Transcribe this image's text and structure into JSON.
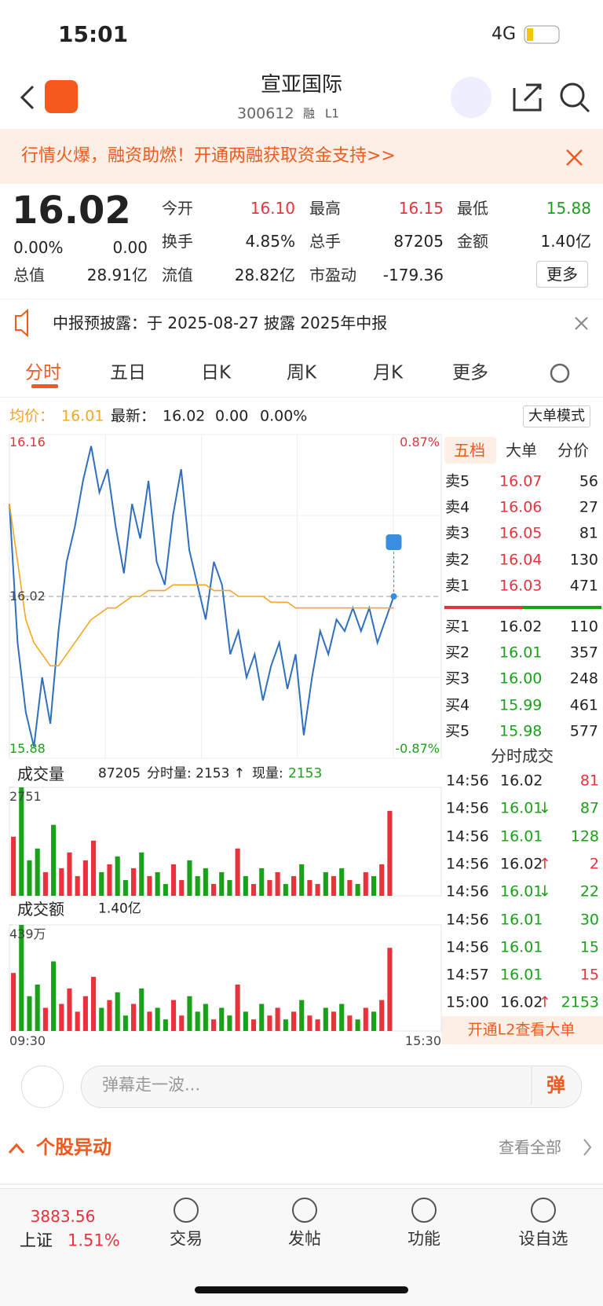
{
  "status": {
    "time": "15:01",
    "network": "4G"
  },
  "header": {
    "title": "宣亚国际",
    "code": "300612",
    "tags": [
      "融",
      "L1"
    ]
  },
  "banner": "行情火爆，融资助燃！开通两融获取资金支持>>",
  "quote": {
    "price": "16.02",
    "change_pct": "0.00%",
    "change": "0.00",
    "more": "更多",
    "stats": [
      {
        "label": "今开",
        "value": "16.10"
      },
      {
        "label": "最高",
        "value": "16.15"
      },
      {
        "label": "最低",
        "value": "15.88"
      },
      {
        "label": "换手",
        "value": "4.85%"
      },
      {
        "label": "总手",
        "value": "87205"
      },
      {
        "label": "金额",
        "value": "1.40亿"
      },
      {
        "label": "总值",
        "value": "28.91亿"
      },
      {
        "label": "流值",
        "value": "28.82亿"
      },
      {
        "label": "市盈动",
        "value": "-179.36"
      }
    ]
  },
  "notice": "中报预披露：于 2025-08-27 披露 2025年中报",
  "tabs": [
    "分时",
    "五日",
    "日K",
    "周K",
    "月K",
    "更多"
  ],
  "info": {
    "avg_label": "均价：",
    "avg": "16.01",
    "last_label": "最新：",
    "last": "16.02",
    "change": "0.00",
    "change_pct": "0.00%",
    "mode": "大单模式"
  },
  "chart_data": [
    {
      "type": "line",
      "ylim": [
        15.88,
        16.16
      ],
      "yticks": [
        15.88,
        16.02,
        16.16
      ],
      "minor_yticks": [
        15.95,
        16.09
      ],
      "y2lim": [
        -0.87,
        0.87
      ],
      "y2ticks": [
        {
          "value": -0.87,
          "label": "-0.87%"
        },
        {
          "value": 0.87,
          "label": "0.87%"
        }
      ],
      "time_labels": [
        "09:30",
        "15:30"
      ],
      "series": [
        {
          "name": "最新",
          "color": "#2f6fbf",
          "values": [
            16.1,
            15.98,
            15.92,
            15.89,
            15.95,
            15.91,
            15.99,
            16.05,
            16.08,
            16.12,
            16.15,
            16.11,
            16.13,
            16.08,
            16.04,
            16.1,
            16.07,
            16.12,
            16.05,
            16.03,
            16.09,
            16.13,
            16.06,
            16.03,
            16.0,
            16.05,
            16.03,
            15.97,
            15.99,
            15.95,
            15.97,
            15.93,
            15.96,
            15.98,
            15.94,
            15.97,
            15.9,
            15.95,
            15.99,
            15.97,
            16.0,
            15.99,
            16.01,
            15.99,
            16.01,
            15.98,
            16.0,
            16.02
          ]
        },
        {
          "name": "均价",
          "color": "#f5a623",
          "values": [
            16.1,
            16.05,
            16.0,
            15.98,
            15.97,
            15.96,
            15.96,
            15.97,
            15.98,
            15.99,
            16.0,
            16.005,
            16.01,
            16.01,
            16.015,
            16.02,
            16.02,
            16.025,
            16.025,
            16.025,
            16.03,
            16.03,
            16.03,
            16.03,
            16.03,
            16.025,
            16.025,
            16.025,
            16.02,
            16.02,
            16.02,
            16.02,
            16.015,
            16.015,
            16.015,
            16.01,
            16.01,
            16.01,
            16.01,
            16.01,
            16.01,
            16.01,
            16.01,
            16.01,
            16.01,
            16.01,
            16.01,
            16.01
          ]
        }
      ]
    },
    {
      "type": "bar",
      "title": "成交量",
      "total": "87205",
      "detail": "分时量: 2153 ↑",
      "now_label": "现量:",
      "now": "2153",
      "ylim": [
        0,
        2751
      ],
      "yticks": [
        2751
      ],
      "up_color": "#e8323c",
      "down_color": "#1aa11a",
      "values": [
        1500,
        2751,
        900,
        1200,
        600,
        1800,
        700,
        1100,
        500,
        900,
        1400,
        600,
        800,
        1000,
        400,
        700,
        1100,
        500,
        600,
        300,
        800,
        400,
        900,
        500,
        700,
        300,
        600,
        400,
        1200,
        500,
        300,
        700,
        400,
        600,
        300,
        500,
        800,
        400,
        300,
        600,
        500,
        700,
        400,
        300,
        600,
        500,
        800,
        2153
      ]
    },
    {
      "type": "bar",
      "title": "成交额",
      "total": "1.40亿",
      "ylim": [
        0,
        439
      ],
      "yticks": [
        {
          "value": 439,
          "label": "439万"
        }
      ],
      "up_color": "#e8323c",
      "down_color": "#1aa11a",
      "values": [
        240,
        439,
        144,
        192,
        96,
        288,
        112,
        176,
        80,
        144,
        224,
        96,
        128,
        160,
        64,
        112,
        176,
        80,
        96,
        48,
        128,
        64,
        144,
        80,
        112,
        48,
        96,
        64,
        192,
        80,
        48,
        112,
        64,
        96,
        48,
        80,
        128,
        64,
        48,
        96,
        80,
        112,
        64,
        48,
        96,
        80,
        128,
        344
      ]
    }
  ],
  "book": {
    "tabs": [
      "五档",
      "大单",
      "分价"
    ],
    "asks": [
      {
        "label": "卖5",
        "price": "16.07",
        "vol": "56"
      },
      {
        "label": "卖4",
        "price": "16.06",
        "vol": "27"
      },
      {
        "label": "卖3",
        "price": "16.05",
        "vol": "81"
      },
      {
        "label": "卖2",
        "price": "16.04",
        "vol": "130"
      },
      {
        "label": "卖1",
        "price": "16.03",
        "vol": "471"
      }
    ],
    "bids": [
      {
        "label": "买1",
        "price": "16.02",
        "vol": "110"
      },
      {
        "label": "买2",
        "price": "16.01",
        "vol": "357"
      },
      {
        "label": "买3",
        "price": "16.00",
        "vol": "248"
      },
      {
        "label": "买4",
        "price": "15.99",
        "vol": "461"
      },
      {
        "label": "买5",
        "price": "15.98",
        "vol": "577"
      }
    ]
  },
  "trades": {
    "title": "分时成交",
    "footer": "开通L2查看大单",
    "rows": [
      {
        "time": "14:56",
        "price": "16.02",
        "vol": "81",
        "color": "#e8323c"
      },
      {
        "time": "14:56",
        "price": "16.01",
        "arrow": "↓",
        "vol": "87",
        "color": "#1aa11a"
      },
      {
        "time": "14:56",
        "price": "16.01",
        "vol": "128",
        "color": "#1aa11a"
      },
      {
        "time": "14:56",
        "price": "16.02",
        "arrow": "↑",
        "vol": "2",
        "color": "#e8323c"
      },
      {
        "time": "14:56",
        "price": "16.01",
        "arrow": "↓",
        "vol": "22",
        "color": "#1aa11a"
      },
      {
        "time": "14:56",
        "price": "16.01",
        "vol": "30",
        "color": "#1aa11a"
      },
      {
        "time": "14:56",
        "price": "16.01",
        "vol": "15",
        "color": "#1aa11a"
      },
      {
        "time": "14:57",
        "price": "16.01",
        "vol": "15",
        "color": "#e8323c"
      },
      {
        "time": "15:00",
        "price": "16.02",
        "arrow": "↑",
        "vol": "2153",
        "color": "#1aa11a"
      }
    ]
  },
  "comment": {
    "placeholder": "弹幕走一波...",
    "button": "弹"
  },
  "section": {
    "title": "个股异动",
    "link": "查看全部"
  },
  "nav": {
    "index_value": "3883.56",
    "index_name": "上证",
    "index_pct": "1.51%",
    "items": [
      "交易",
      "发帖",
      "功能",
      "设自选"
    ]
  }
}
